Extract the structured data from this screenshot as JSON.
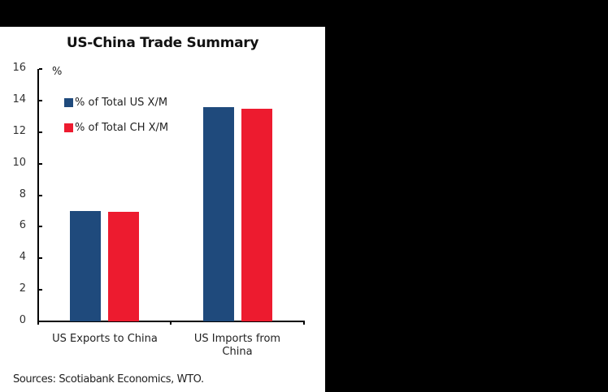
{
  "chart_data": {
    "type": "bar",
    "title": "US-China Trade Summary",
    "xlabel": "",
    "ylabel": "%",
    "ylim": [
      0,
      16
    ],
    "yticks": [
      0,
      2,
      4,
      6,
      8,
      10,
      12,
      14,
      16
    ],
    "grid": false,
    "legend_position": "upper-left-inside",
    "categories": [
      "US Exports to China",
      "US Imports from China"
    ],
    "series": [
      {
        "name": "% of Total US X/M",
        "color": "#1f4a7c",
        "values": [
          7.0,
          13.6
        ]
      },
      {
        "name": "% of Total CH X/M",
        "color": "#ed1b2f",
        "values": [
          6.95,
          13.5
        ]
      }
    ],
    "source": "Sources: Scotiabank Economics, WTO."
  },
  "labels": {
    "title": "US-China Trade Summary",
    "unit": "%",
    "legend": [
      "% of Total US X/M",
      "% of Total CH X/M"
    ],
    "categories": [
      "US Exports to China",
      "US Imports from China"
    ],
    "yticks": [
      "16",
      "14",
      "12",
      "10",
      "8",
      "6",
      "4",
      "2",
      "0"
    ],
    "source": "Sources: Scotiabank Economics, WTO."
  }
}
